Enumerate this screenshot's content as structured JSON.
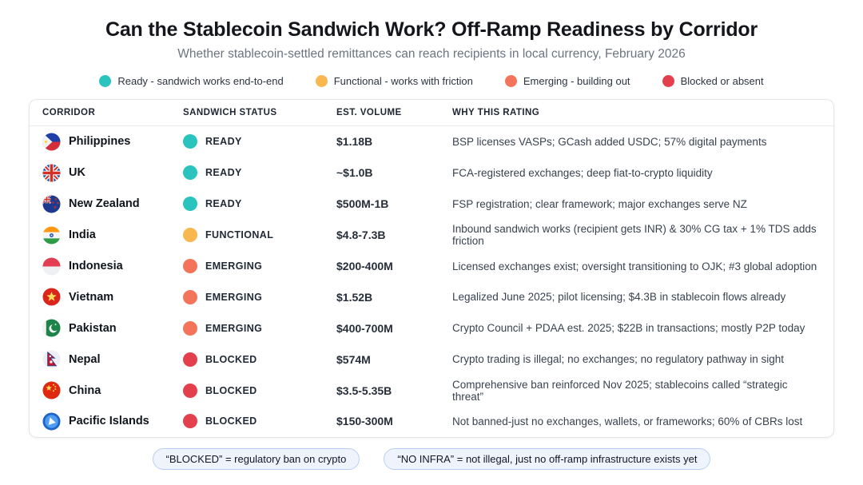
{
  "chart_data": {
    "type": "table",
    "title": "Can the Stablecoin Sandwich Work? Off-Ramp Readiness by Corridor",
    "subtitle": "Whether stablecoin-settled remittances can reach recipients in local currency, February 2026",
    "legend": [
      {
        "label": "Ready - sandwich works end-to-end",
        "color": "#2bc3be"
      },
      {
        "label": "Functional - works with friction",
        "color": "#f8b84f"
      },
      {
        "label": "Emerging - building out",
        "color": "#f4745b"
      },
      {
        "label": "Blocked or absent",
        "color": "#e43f4d"
      }
    ],
    "status_colors": {
      "READY": "#2bc3be",
      "FUNCTIONAL": "#f8b84f",
      "EMERGING": "#f4745b",
      "BLOCKED": "#e43f4d"
    },
    "columns": [
      "CORRIDOR",
      "SANDWICH STATUS",
      "EST. VOLUME",
      "WHY THIS RATING"
    ],
    "rows": [
      {
        "corridor": "Philippines",
        "flag": "philippines",
        "status": "READY",
        "volume": "$1.18B",
        "why": "BSP licenses VASPs; GCash added USDC; 57% digital payments"
      },
      {
        "corridor": "UK",
        "flag": "uk",
        "status": "READY",
        "volume": "~$1.0B",
        "why": "FCA-registered exchanges; deep fiat-to-crypto liquidity"
      },
      {
        "corridor": "New Zealand",
        "flag": "new-zealand",
        "status": "READY",
        "volume": "$500M-1B",
        "why": "FSP registration; clear framework; major exchanges serve NZ"
      },
      {
        "corridor": "India",
        "flag": "india",
        "status": "FUNCTIONAL",
        "volume": "$4.8-7.3B",
        "why": "Inbound sandwich works (recipient gets INR) & 30% CG tax + 1% TDS adds friction"
      },
      {
        "corridor": "Indonesia",
        "flag": "indonesia",
        "status": "EMERGING",
        "volume": "$200-400M",
        "why": "Licensed exchanges exist; oversight transitioning to OJK; #3 global adoption"
      },
      {
        "corridor": "Vietnam",
        "flag": "vietnam",
        "status": "EMERGING",
        "volume": "$1.52B",
        "why": "Legalized June 2025; pilot licensing; $4.3B in stablecoin flows already"
      },
      {
        "corridor": "Pakistan",
        "flag": "pakistan",
        "status": "EMERGING",
        "volume": "$400-700M",
        "why": "Crypto Council + PDAA est. 2025; $22B in transactions; mostly P2P today"
      },
      {
        "corridor": "Nepal",
        "flag": "nepal",
        "status": "BLOCKED",
        "volume": "$574M",
        "why": "Crypto trading is illegal; no exchanges; no regulatory pathway in sight"
      },
      {
        "corridor": "China",
        "flag": "china",
        "status": "BLOCKED",
        "volume": "$3.5-5.35B",
        "why": "Comprehensive ban reinforced Nov 2025; stablecoins called “strategic threat”"
      },
      {
        "corridor": "Pacific Islands",
        "flag": "pacific-islands",
        "status": "BLOCKED",
        "volume": "$150-300M",
        "why": "Not banned-just no exchanges, wallets, or frameworks; 60% of CBRs lost"
      }
    ],
    "footnotes": [
      "“BLOCKED” = regulatory ban on crypto",
      "“NO INFRA” = not illegal, just no off-ramp infrastructure exists yet"
    ]
  }
}
